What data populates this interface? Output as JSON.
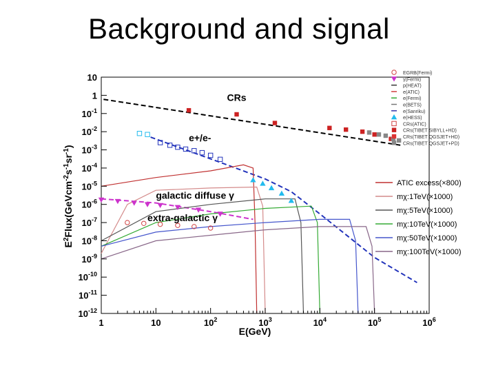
{
  "slide": {
    "title": "Background and signal"
  },
  "chart_data": {
    "type": "scatter",
    "log_x": true,
    "log_y": true,
    "xlim": [
      1,
      1000000
    ],
    "ylim": [
      1e-12,
      10
    ],
    "grid": false,
    "xlabel": "E(GeV)",
    "ylabel": "E2Flux(GeVcm-2s-1sr-1)",
    "x_ticks": [
      {
        "value": 1,
        "base": "1",
        "exp": ""
      },
      {
        "value": 10,
        "base": "10",
        "exp": ""
      },
      {
        "value": 100,
        "base": "10",
        "exp": "2"
      },
      {
        "value": 1000,
        "base": "10",
        "exp": "3"
      },
      {
        "value": 10000,
        "base": "10",
        "exp": "4"
      },
      {
        "value": 100000,
        "base": "10",
        "exp": "5"
      },
      {
        "value": 1000000,
        "base": "10",
        "exp": "6"
      }
    ],
    "y_ticks": [
      {
        "value": 10,
        "base": "10",
        "exp": ""
      },
      {
        "value": 1,
        "base": "1",
        "exp": ""
      },
      {
        "value": 0.1,
        "base": "10",
        "exp": "-1"
      },
      {
        "value": 0.01,
        "base": "10",
        "exp": "-2"
      },
      {
        "value": 0.001,
        "base": "10",
        "exp": "-3"
      },
      {
        "value": 0.0001,
        "base": "10",
        "exp": "-4"
      },
      {
        "value": 1e-05,
        "base": "10",
        "exp": "-5"
      },
      {
        "value": 1e-06,
        "base": "10",
        "exp": "-6"
      },
      {
        "value": 1e-07,
        "base": "10",
        "exp": "-7"
      },
      {
        "value": 1e-08,
        "base": "10",
        "exp": "-8"
      },
      {
        "value": 1e-09,
        "base": "10",
        "exp": "-9"
      },
      {
        "value": 1e-10,
        "base": "10",
        "exp": "-10"
      },
      {
        "value": 1e-11,
        "base": "10",
        "exp": "-11"
      },
      {
        "value": 1e-12,
        "base": "10",
        "exp": "-12"
      }
    ],
    "annotations": [
      {
        "text": "CRs",
        "x": 200,
        "y": 0.5
      },
      {
        "text": "e+/e-",
        "x": 40,
        "y": 0.003
      },
      {
        "text": "galactic diffuse γ",
        "x": 10,
        "y": 2e-06
      },
      {
        "text": "extra-galactic γ",
        "x": 7,
        "y": 1.2e-07
      }
    ],
    "legend_top": {
      "placement": "top-right",
      "entries": [
        {
          "label": "EGRB(Fermi)",
          "color": "#d04040",
          "marker": "open-circle"
        },
        {
          "label": "γ(Fermi)",
          "color": "#cc33cc",
          "marker": "down-triangle"
        },
        {
          "label": "p(HEAT)",
          "color": "#333333",
          "marker": "dash"
        },
        {
          "label": "e(ATIC)",
          "color": "#d04040",
          "marker": "dash"
        },
        {
          "label": "e(Fermi)",
          "color": "#33aa33",
          "marker": "dash"
        },
        {
          "label": "e(BETS)",
          "color": "#777777",
          "marker": "dash"
        },
        {
          "label": "e(Sanriku)",
          "color": "#3333aa",
          "marker": "dash"
        },
        {
          "label": "e(HESS)",
          "color": "#22bbee",
          "marker": "up-triangle"
        },
        {
          "label": "CRs(ATIC)",
          "color": "#d04040",
          "marker": "open-square"
        },
        {
          "label": "CRs(TIBET SIBYLL+HD)",
          "color": "#cc2222",
          "marker": "filled-square"
        },
        {
          "label": "CRs(TIBET QGSJET+HD)",
          "color": "#dd3333",
          "marker": "filled-square"
        },
        {
          "label": "CRs(TIBET QGSJET+PD)",
          "color": "#888888",
          "marker": "filled-square"
        }
      ]
    },
    "legend_bottom": {
      "placement": "right",
      "entries": [
        {
          "label": "ATIC excess(×800)",
          "color": "#c03030"
        },
        {
          "label": "mχ:1TeV(×1000)",
          "color": "#d48a8a"
        },
        {
          "label": "mχ:5TeV(×1000)",
          "color": "#555555"
        },
        {
          "label": "mχ:10TeV(×1000)",
          "color": "#33aa33"
        },
        {
          "label": "mχ:50TeV(×1000)",
          "color": "#4455cc"
        },
        {
          "label": "mχ:100TeV(×1000)",
          "color": "#886688"
        }
      ]
    },
    "series": [
      {
        "name": "CRs",
        "kind": "line",
        "color": "#000000",
        "dash": true,
        "x": [
          1.1,
          300000
        ],
        "y": [
          0.6,
          0.0018
        ]
      },
      {
        "name": "e+/e-",
        "kind": "line",
        "color": "#2233bb",
        "dash": true,
        "x": [
          8,
          200,
          1000,
          3000,
          10000,
          100000,
          600000
        ],
        "y": [
          0.005,
          0.00015,
          2.5e-05,
          5e-06,
          3e-07,
          1.2e-09,
          5e-11
        ]
      },
      {
        "name": "galactic diffuse γ",
        "kind": "line",
        "color": "#cc33cc",
        "dash": true,
        "x": [
          1,
          10,
          100,
          600
        ],
        "y": [
          2e-06,
          1.2e-06,
          4e-07,
          1.5e-07
        ]
      },
      {
        "name": "ATIC excess(×800)",
        "kind": "curve",
        "color": "#c03030",
        "x": [
          1,
          10,
          100,
          400,
          600,
          650,
          700
        ],
        "y": [
          1e-05,
          3e-05,
          7e-05,
          0.00015,
          0.0001,
          1e-07,
          1e-12
        ]
      },
      {
        "name": "mχ:1TeV(×1000)",
        "kind": "curve",
        "color": "#d48a8a",
        "x": [
          1,
          3,
          10,
          100,
          700,
          900,
          1000
        ],
        "y": [
          2e-09,
          1e-06,
          6e-06,
          8e-06,
          9e-06,
          8e-07,
          1e-12
        ]
      },
      {
        "name": "mχ:5TeV(×1000)",
        "kind": "curve",
        "color": "#555555",
        "x": [
          1,
          10,
          100,
          1000,
          3500,
          4500,
          5000
        ],
        "y": [
          1e-08,
          4e-07,
          1e-06,
          2e-06,
          2e-06,
          1e-07,
          1e-12
        ]
      },
      {
        "name": "mχ:10TeV(×1000)",
        "kind": "curve",
        "color": "#33aa33",
        "x": [
          1,
          10,
          100,
          1000,
          7000,
          9000,
          10000
        ],
        "y": [
          5e-09,
          1e-07,
          3e-07,
          6e-07,
          8e-07,
          1e-07,
          1e-12
        ]
      },
      {
        "name": "mχ:50TeV(×1000)",
        "kind": "curve",
        "color": "#4455cc",
        "x": [
          1,
          10,
          100,
          1000,
          10000,
          35000,
          45000,
          50000
        ],
        "y": [
          5e-09,
          3e-08,
          6e-08,
          1e-07,
          1.5e-07,
          1.5e-07,
          1e-08,
          1e-12
        ]
      },
      {
        "name": "mχ:100TeV(×1000)",
        "kind": "curve",
        "color": "#886688",
        "x": [
          1,
          10,
          100,
          1000,
          10000,
          70000,
          90000,
          100000
        ],
        "y": [
          1e-09,
          1e-08,
          2e-08,
          4e-08,
          6e-08,
          6e-08,
          5e-09,
          1e-12
        ]
      },
      {
        "name": "CRs(ATIC/TIBET)",
        "kind": "points",
        "marker": "filled-square",
        "color": "#cc2222",
        "x": [
          40,
          300,
          1500,
          15000,
          30000,
          60000,
          100000,
          200000
        ],
        "y": [
          0.15,
          0.09,
          0.03,
          0.016,
          0.013,
          0.01,
          0.007,
          0.004
        ]
      },
      {
        "name": "CRs(TIBET QGSJET+PD)",
        "kind": "points",
        "marker": "filled-square",
        "color": "#888888",
        "x": [
          80000,
          120000,
          160000,
          220000,
          280000
        ],
        "y": [
          0.009,
          0.007,
          0.006,
          0.004,
          0.0033
        ]
      },
      {
        "name": "e(Sanriku)",
        "kind": "points",
        "marker": "open-square",
        "color": "#2233bb",
        "x": [
          12,
          18,
          25,
          35,
          50,
          70,
          100,
          150
        ],
        "y": [
          0.0025,
          0.0018,
          0.0014,
          0.0011,
          0.0009,
          0.0007,
          0.0005,
          0.0003
        ]
      },
      {
        "name": "e(HESS)",
        "kind": "points",
        "marker": "up-triangle",
        "color": "#22bbee",
        "x": [
          600,
          900,
          1300,
          2000,
          3000
        ],
        "y": [
          2.2e-05,
          1.4e-05,
          8e-06,
          4e-06,
          1.6e-06
        ]
      },
      {
        "name": "γ(Fermi)",
        "kind": "points",
        "marker": "down-triangle",
        "color": "#cc33cc",
        "x": [
          1,
          2,
          4,
          7,
          12,
          25,
          60,
          150
        ],
        "y": [
          1.8e-06,
          1.5e-06,
          1.2e-06,
          1e-06,
          9e-07,
          7e-07,
          5e-07,
          3e-07
        ]
      },
      {
        "name": "EGRB(Fermi)",
        "kind": "points",
        "marker": "open-circle",
        "color": "#d04040",
        "x": [
          3,
          6,
          12,
          25,
          50,
          100
        ],
        "y": [
          1e-07,
          9e-08,
          8e-08,
          7e-08,
          6e-08,
          5e-08
        ]
      },
      {
        "name": "e(BETS)",
        "kind": "points",
        "marker": "open-square",
        "color": "#22bbee",
        "x": [
          5,
          7
        ],
        "y": [
          0.008,
          0.007
        ]
      }
    ]
  }
}
